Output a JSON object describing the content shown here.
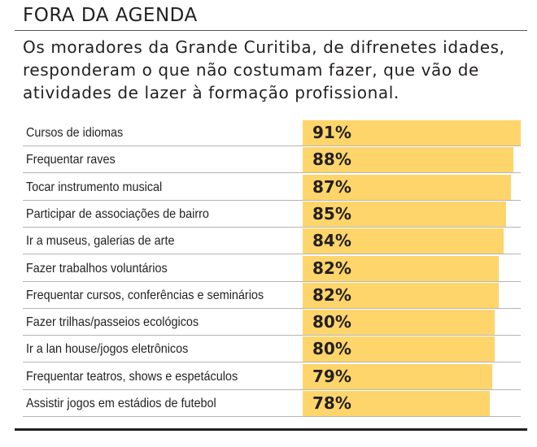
{
  "chart_data": {
    "type": "bar",
    "orientation": "horizontal",
    "title": "FORA DA AGENDA",
    "subtitle": "Os moradores da Grande Curitiba, de difrenetes idades, responderam o que não costumam fazer, que vão de atividades de lazer à formação profissional.",
    "categories": [
      "Cursos de idiomas",
      "Frequentar raves",
      "Tocar instrumento musical",
      "Participar de associações de bairro",
      "Ir a museus, galerias de arte",
      "Fazer trabalhos voluntários",
      "Frequentar cursos, conferências e seminários",
      "Fazer trilhas/passeios ecológicos",
      "Ir a lan house/jogos eletrônicos",
      "Frequentar teatros, shows e espetáculos",
      "Assistir jogos em estádios de futebol"
    ],
    "values": [
      91,
      88,
      87,
      85,
      84,
      82,
      82,
      80,
      80,
      79,
      78
    ],
    "value_labels": [
      "91%",
      "88%",
      "87%",
      "85%",
      "84%",
      "82%",
      "82%",
      "80%",
      "80%",
      "79%",
      "78%"
    ],
    "color": "#fdd56b"
  }
}
